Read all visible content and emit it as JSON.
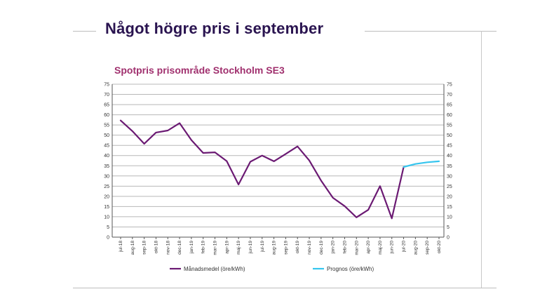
{
  "slide": {
    "title": "Något högre pris i september"
  },
  "chart_data": {
    "type": "line",
    "title": "Spotpris prisområde Stockholm SE3",
    "xlabel": "",
    "ylabel": "",
    "ylim": [
      0,
      75
    ],
    "yticks": [
      0,
      5,
      10,
      15,
      20,
      25,
      30,
      35,
      40,
      45,
      50,
      55,
      60,
      65,
      70,
      75
    ],
    "grid": true,
    "dual_y_axis": true,
    "legend_position": "bottom",
    "categories": [
      "jul-18",
      "aug-18",
      "sep-18",
      "okt-18",
      "nov-18",
      "dec-18",
      "jan-19",
      "feb-19",
      "mar-19",
      "apr-19",
      "maj-19",
      "jun-19",
      "jul-19",
      "aug-19",
      "sep-19",
      "okt-19",
      "nov-19",
      "dec-19",
      "jan-20",
      "feb-20",
      "mar-20",
      "apr-20",
      "maj-20",
      "jun-20",
      "jul-20",
      "aug-20",
      "sep-20",
      "okt-20"
    ],
    "series": [
      {
        "name": "Månadsmedel (öre/kWh)",
        "color": "#6b1a73",
        "values": [
          57.2,
          52,
          45.8,
          51.3,
          52.3,
          55.9,
          47.6,
          41.3,
          41.6,
          37.3,
          25.8,
          37,
          40,
          37.2,
          40.8,
          44.5,
          37.6,
          27.7,
          19.3,
          15.2,
          9.7,
          13.4,
          25,
          9.2,
          34.4,
          null,
          null,
          null
        ]
      },
      {
        "name": "Prognos (öre/kWh)",
        "color": "#36c5ee",
        "values": [
          null,
          null,
          null,
          null,
          null,
          null,
          null,
          null,
          null,
          null,
          null,
          null,
          null,
          null,
          null,
          null,
          null,
          null,
          null,
          null,
          null,
          null,
          null,
          null,
          34.4,
          35.9,
          36.7,
          37.2
        ]
      }
    ]
  }
}
